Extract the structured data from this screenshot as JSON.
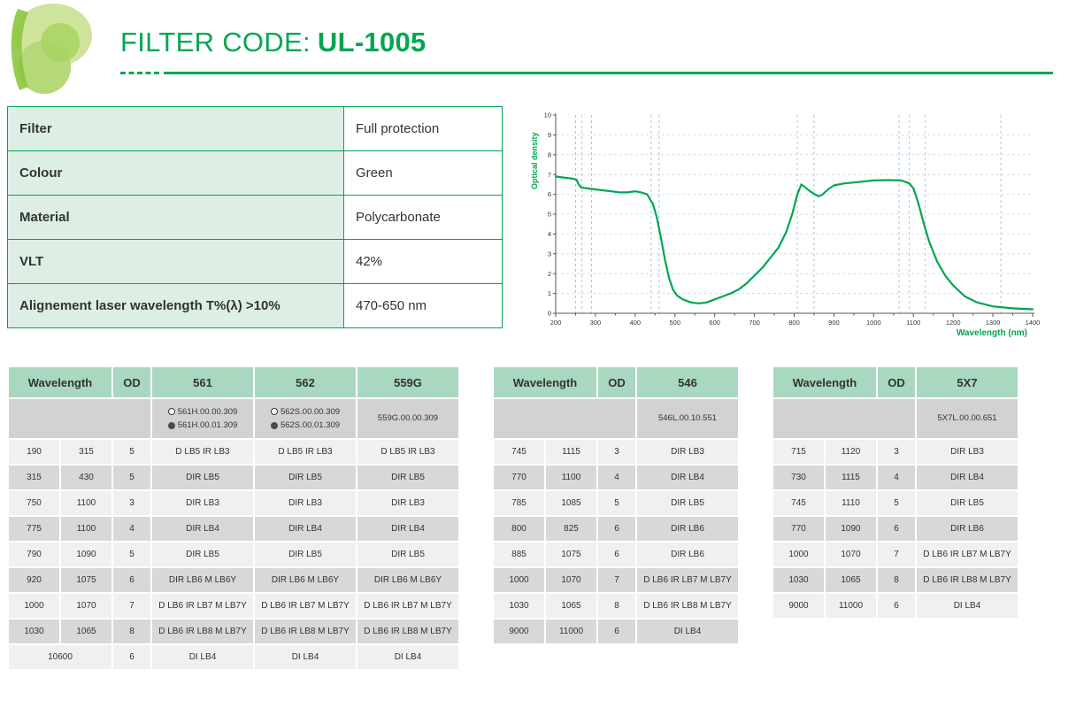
{
  "header": {
    "title_prefix": "FILTER CODE:",
    "title_code": "UL-1005"
  },
  "colors": {
    "accent": "#00a651",
    "table_header_green": "#a8d8c0",
    "info_label_green": "#ddefe5",
    "row_light": "#f0f0f0",
    "row_dark": "#d8d8d8",
    "codes_gray": "#d2d2d2",
    "grid_blue": "#9cc2e0"
  },
  "info_table": {
    "rows": [
      {
        "label": "Filter",
        "value": "Full protection"
      },
      {
        "label": "Colour",
        "value": "Green"
      },
      {
        "label": "Material",
        "value": "Polycarbonate"
      },
      {
        "label": "VLT",
        "value": "42%"
      },
      {
        "label": "Alignement laser wavelength T%(λ) >10%",
        "value": "470-650 nm"
      }
    ]
  },
  "chart_data": {
    "type": "line",
    "title": "",
    "xlabel": "Wavelength (nm)",
    "ylabel": "Optical density",
    "xlim": [
      200,
      1400
    ],
    "ylim": [
      0,
      10
    ],
    "x_ticks": [
      200,
      300,
      400,
      500,
      600,
      700,
      800,
      900,
      1000,
      1100,
      1200,
      1300,
      1400
    ],
    "y_ticks": [
      0,
      1,
      2,
      3,
      4,
      5,
      6,
      7,
      8,
      9,
      10
    ],
    "grid_x": [
      250,
      266,
      290,
      440,
      460,
      808,
      850,
      1064,
      1090,
      1130,
      1320
    ],
    "grid_y": [
      1,
      2,
      3,
      4,
      5,
      6,
      7,
      8,
      9
    ],
    "legend": "none",
    "series": [
      {
        "name": "Optical density",
        "color": "#00a651",
        "x": [
          200,
          220,
          240,
          252,
          258,
          264,
          280,
          300,
          320,
          340,
          360,
          380,
          400,
          415,
          430,
          445,
          455,
          465,
          475,
          485,
          495,
          505,
          520,
          540,
          560,
          580,
          600,
          620,
          640,
          660,
          680,
          700,
          720,
          740,
          760,
          780,
          795,
          808,
          818,
          828,
          840,
          852,
          862,
          872,
          885,
          900,
          925,
          950,
          1000,
          1040,
          1070,
          1090,
          1100,
          1112,
          1125,
          1140,
          1160,
          1180,
          1200,
          1230,
          1260,
          1300,
          1350,
          1400
        ],
        "y": [
          6.9,
          6.85,
          6.8,
          6.75,
          6.5,
          6.35,
          6.3,
          6.25,
          6.2,
          6.15,
          6.1,
          6.1,
          6.15,
          6.1,
          6.0,
          5.5,
          4.8,
          3.8,
          2.7,
          1.8,
          1.2,
          0.9,
          0.7,
          0.55,
          0.5,
          0.55,
          0.7,
          0.85,
          1.0,
          1.2,
          1.5,
          1.9,
          2.3,
          2.8,
          3.3,
          4.1,
          5.0,
          6.0,
          6.5,
          6.35,
          6.15,
          6.0,
          5.9,
          6.0,
          6.25,
          6.45,
          6.55,
          6.6,
          6.7,
          6.72,
          6.7,
          6.55,
          6.3,
          5.6,
          4.6,
          3.6,
          2.6,
          1.9,
          1.4,
          0.85,
          0.55,
          0.35,
          0.25,
          0.2
        ]
      }
    ]
  },
  "filter_tables": [
    {
      "wavelength_header": "Wavelength",
      "od_header": "OD",
      "products": [
        {
          "label": "561",
          "codes": [
            {
              "marker": "empty",
              "text": "561H.00.00.309"
            },
            {
              "marker": "filled",
              "text": "561H.00.01.309"
            }
          ]
        },
        {
          "label": "562",
          "codes": [
            {
              "marker": "empty",
              "text": "562S.00.00.309"
            },
            {
              "marker": "filled",
              "text": "562S.00.01.309"
            }
          ]
        },
        {
          "label": "559G",
          "codes": [
            {
              "marker": "none",
              "text": "559G.00.00.309"
            }
          ]
        }
      ],
      "rows": [
        {
          "from": "190",
          "to": "315",
          "od": "5",
          "values": [
            "D LB5 IR LB3",
            "D LB5 IR LB3",
            "D LB5 IR LB3"
          ]
        },
        {
          "from": "315",
          "to": "430",
          "od": "5",
          "values": [
            "DIR LB5",
            "DIR LB5",
            "DIR LB5"
          ]
        },
        {
          "from": "750",
          "to": "1100",
          "od": "3",
          "values": [
            "DIR LB3",
            "DIR LB3",
            "DIR LB3"
          ]
        },
        {
          "from": "775",
          "to": "1100",
          "od": "4",
          "values": [
            "DIR LB4",
            "DIR LB4",
            "DIR LB4"
          ]
        },
        {
          "from": "790",
          "to": "1090",
          "od": "5",
          "values": [
            "DIR LB5",
            "DIR LB5",
            "DIR LB5"
          ]
        },
        {
          "from": "920",
          "to": "1075",
          "od": "6",
          "values": [
            "DIR LB6 M LB6Y",
            "DIR LB6 M LB6Y",
            "DIR LB6 M LB6Y"
          ]
        },
        {
          "from": "1000",
          "to": "1070",
          "od": "7",
          "values": [
            "D LB6 IR LB7 M LB7Y",
            "D LB6 IR LB7 M LB7Y",
            "D LB6 IR LB7 M LB7Y"
          ]
        },
        {
          "from": "1030",
          "to": "1065",
          "od": "8",
          "values": [
            "D LB6 IR LB8 M LB7Y",
            "D LB6 IR LB8 M LB7Y",
            "D LB6 IR LB8 M LB7Y"
          ]
        },
        {
          "from": "10600",
          "to": null,
          "od": "6",
          "values": [
            "DI LB4",
            "DI LB4",
            "DI LB4"
          ]
        }
      ]
    },
    {
      "wavelength_header": "Wavelength",
      "od_header": "OD",
      "products": [
        {
          "label": "546",
          "codes": [
            {
              "marker": "none",
              "text": "546L.00.10.551"
            }
          ]
        }
      ],
      "rows": [
        {
          "from": "745",
          "to": "1115",
          "od": "3",
          "values": [
            "DIR LB3"
          ]
        },
        {
          "from": "770",
          "to": "1100",
          "od": "4",
          "values": [
            "DIR LB4"
          ]
        },
        {
          "from": "785",
          "to": "1085",
          "od": "5",
          "values": [
            "DIR LB5"
          ]
        },
        {
          "from": "800",
          "to": "825",
          "od": "6",
          "values": [
            "DIR LB6"
          ]
        },
        {
          "from": "885",
          "to": "1075",
          "od": "6",
          "values": [
            "DIR LB6"
          ]
        },
        {
          "from": "1000",
          "to": "1070",
          "od": "7",
          "values": [
            "D LB6 IR LB7 M LB7Y"
          ]
        },
        {
          "from": "1030",
          "to": "1065",
          "od": "8",
          "values": [
            "D LB6 IR LB8 M LB7Y"
          ]
        },
        {
          "from": "9000",
          "to": "11000",
          "od": "6",
          "values": [
            "DI LB4"
          ]
        }
      ]
    },
    {
      "wavelength_header": "Wavelength",
      "od_header": "OD",
      "products": [
        {
          "label": "5X7",
          "codes": [
            {
              "marker": "none",
              "text": "5X7L.00.00.651"
            }
          ]
        }
      ],
      "rows": [
        {
          "from": "715",
          "to": "1120",
          "od": "3",
          "values": [
            "DIR LB3"
          ]
        },
        {
          "from": "730",
          "to": "1115",
          "od": "4",
          "values": [
            "DIR LB4"
          ]
        },
        {
          "from": "745",
          "to": "1110",
          "od": "5",
          "values": [
            "DIR LB5"
          ]
        },
        {
          "from": "770",
          "to": "1090",
          "od": "6",
          "values": [
            "DIR LB6"
          ]
        },
        {
          "from": "1000",
          "to": "1070",
          "od": "7",
          "values": [
            "D LB6 IR LB7 M LB7Y"
          ]
        },
        {
          "from": "1030",
          "to": "1065",
          "od": "8",
          "values": [
            "D LB6 IR LB8 M LB7Y"
          ]
        },
        {
          "from": "9000",
          "to": "11000",
          "od": "6",
          "values": [
            "DI LB4"
          ]
        }
      ]
    }
  ]
}
